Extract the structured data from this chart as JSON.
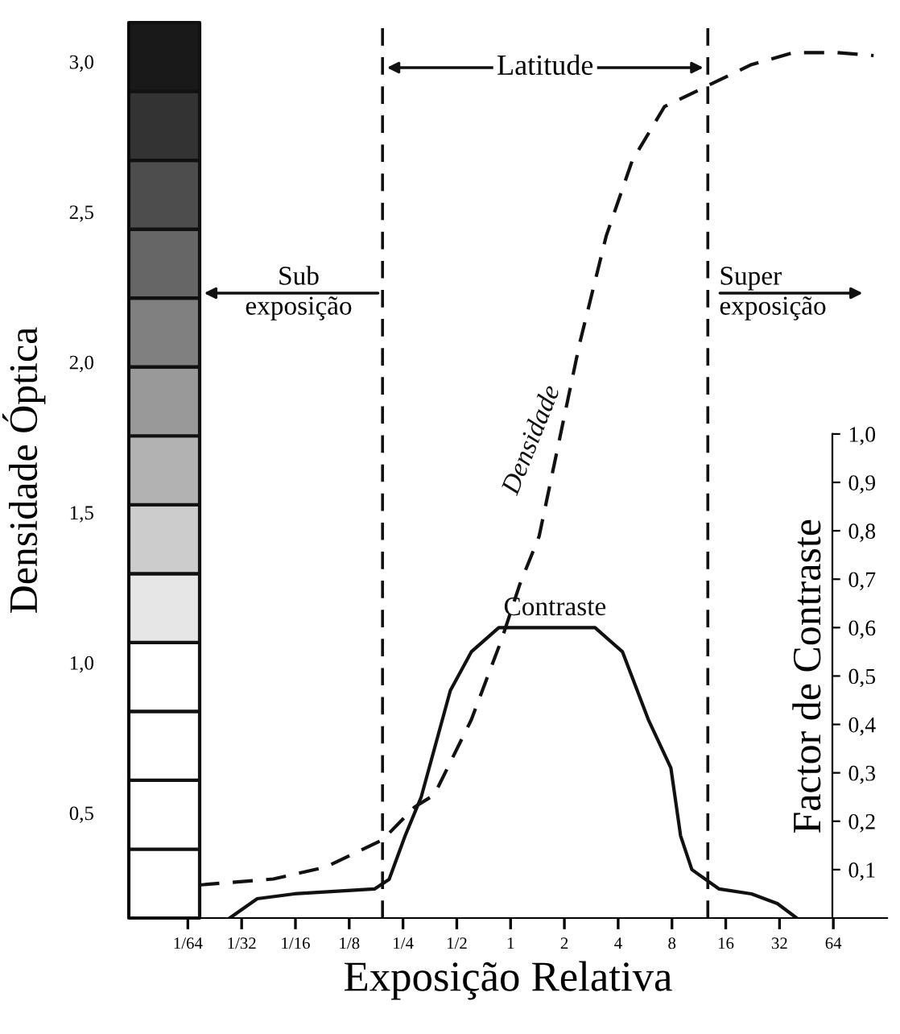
{
  "chart_data": {
    "type": "line",
    "xlabel": "Exposição Relativa",
    "ylabel": "Densidade Óptica",
    "y2label": "Factor de Contraste",
    "log": "x",
    "xlim": [
      0.0073,
      128
    ],
    "xticks": [
      {
        "value": 0.015625,
        "label": "1/64"
      },
      {
        "value": 0.03125,
        "label": "1/32"
      },
      {
        "value": 0.0625,
        "label": "1/16"
      },
      {
        "value": 0.125,
        "label": "1/8"
      },
      {
        "value": 0.25,
        "label": "1/4"
      },
      {
        "value": 0.5,
        "label": "1/2"
      },
      1,
      2,
      4,
      8,
      16,
      32,
      64
    ],
    "ylim": [
      0.15,
      3.13
    ],
    "yticks": [
      {
        "value": 0.5,
        "label": "0,5"
      },
      {
        "value": 1.0,
        "label": "1,0"
      },
      {
        "value": 1.5,
        "label": "1,5"
      },
      {
        "value": 2.0,
        "label": "2,0"
      },
      {
        "value": 2.5,
        "label": "2,5"
      },
      {
        "value": 3.0,
        "label": "3,0"
      }
    ],
    "y2lim": [
      0,
      1.85
    ],
    "y2ticks": [
      {
        "value": 0.1,
        "label": "0,1"
      },
      {
        "value": 0.2,
        "label": "0,2"
      },
      {
        "value": 0.3,
        "label": "0,3"
      },
      {
        "value": 0.4,
        "label": "0,4"
      },
      {
        "value": 0.5,
        "label": "0,5"
      },
      {
        "value": 0.6,
        "label": "0,6"
      },
      {
        "value": 0.7,
        "label": "0,7"
      },
      {
        "value": 0.8,
        "label": "0,8"
      },
      {
        "value": 0.9,
        "label": "0,9"
      },
      {
        "value": 1.0,
        "label": "1,0"
      }
    ],
    "grid": false,
    "marker": "none",
    "series": [
      {
        "name": "Densidade",
        "color": "#111111",
        "line_style": "dashed",
        "x": [
          0.0181,
          0.047,
          0.0928,
          0.192,
          0.291,
          0.374,
          0.603,
          0.895,
          1.125,
          1.444,
          2.43,
          3.43,
          4.79,
          7.26,
          12.7,
          22.3,
          38.3,
          67.2,
          107.6
        ],
        "values": [
          0.26,
          0.28,
          0.32,
          0.41,
          0.52,
          0.56,
          0.81,
          1.08,
          1.26,
          1.42,
          2.06,
          2.42,
          2.67,
          2.85,
          2.92,
          2.99,
          3.03,
          3.03,
          3.02
        ]
      },
      {
        "name": "Contraste",
        "color": "#111111",
        "line_style": "solid",
        "axis": "y2",
        "x": [
          0.0268,
          0.0382,
          0.0616,
          0.173,
          0.209,
          0.257,
          0.316,
          0.46,
          0.603,
          0.859,
          1.057,
          2.97,
          4.23,
          5.9,
          7.89,
          8.94,
          10.34,
          14.7,
          22.3,
          31.1,
          39.9
        ],
        "values": [
          0,
          0.04,
          0.05,
          0.06,
          0.08,
          0.17,
          0.25,
          0.47,
          0.55,
          0.6,
          0.6,
          0.6,
          0.55,
          0.41,
          0.31,
          0.17,
          0.1,
          0.06,
          0.05,
          0.03,
          0
        ]
      }
    ],
    "ref_lines": [
      {
        "axis": "x",
        "value": 0.192,
        "line_style": "dashed",
        "color": "#111111"
      },
      {
        "axis": "x",
        "value": 12.7,
        "line_style": "dashed",
        "color": "#111111"
      }
    ],
    "annotations": [
      "Latitude",
      "Sub\nexposição",
      "Super\nexposição"
    ]
  }
}
